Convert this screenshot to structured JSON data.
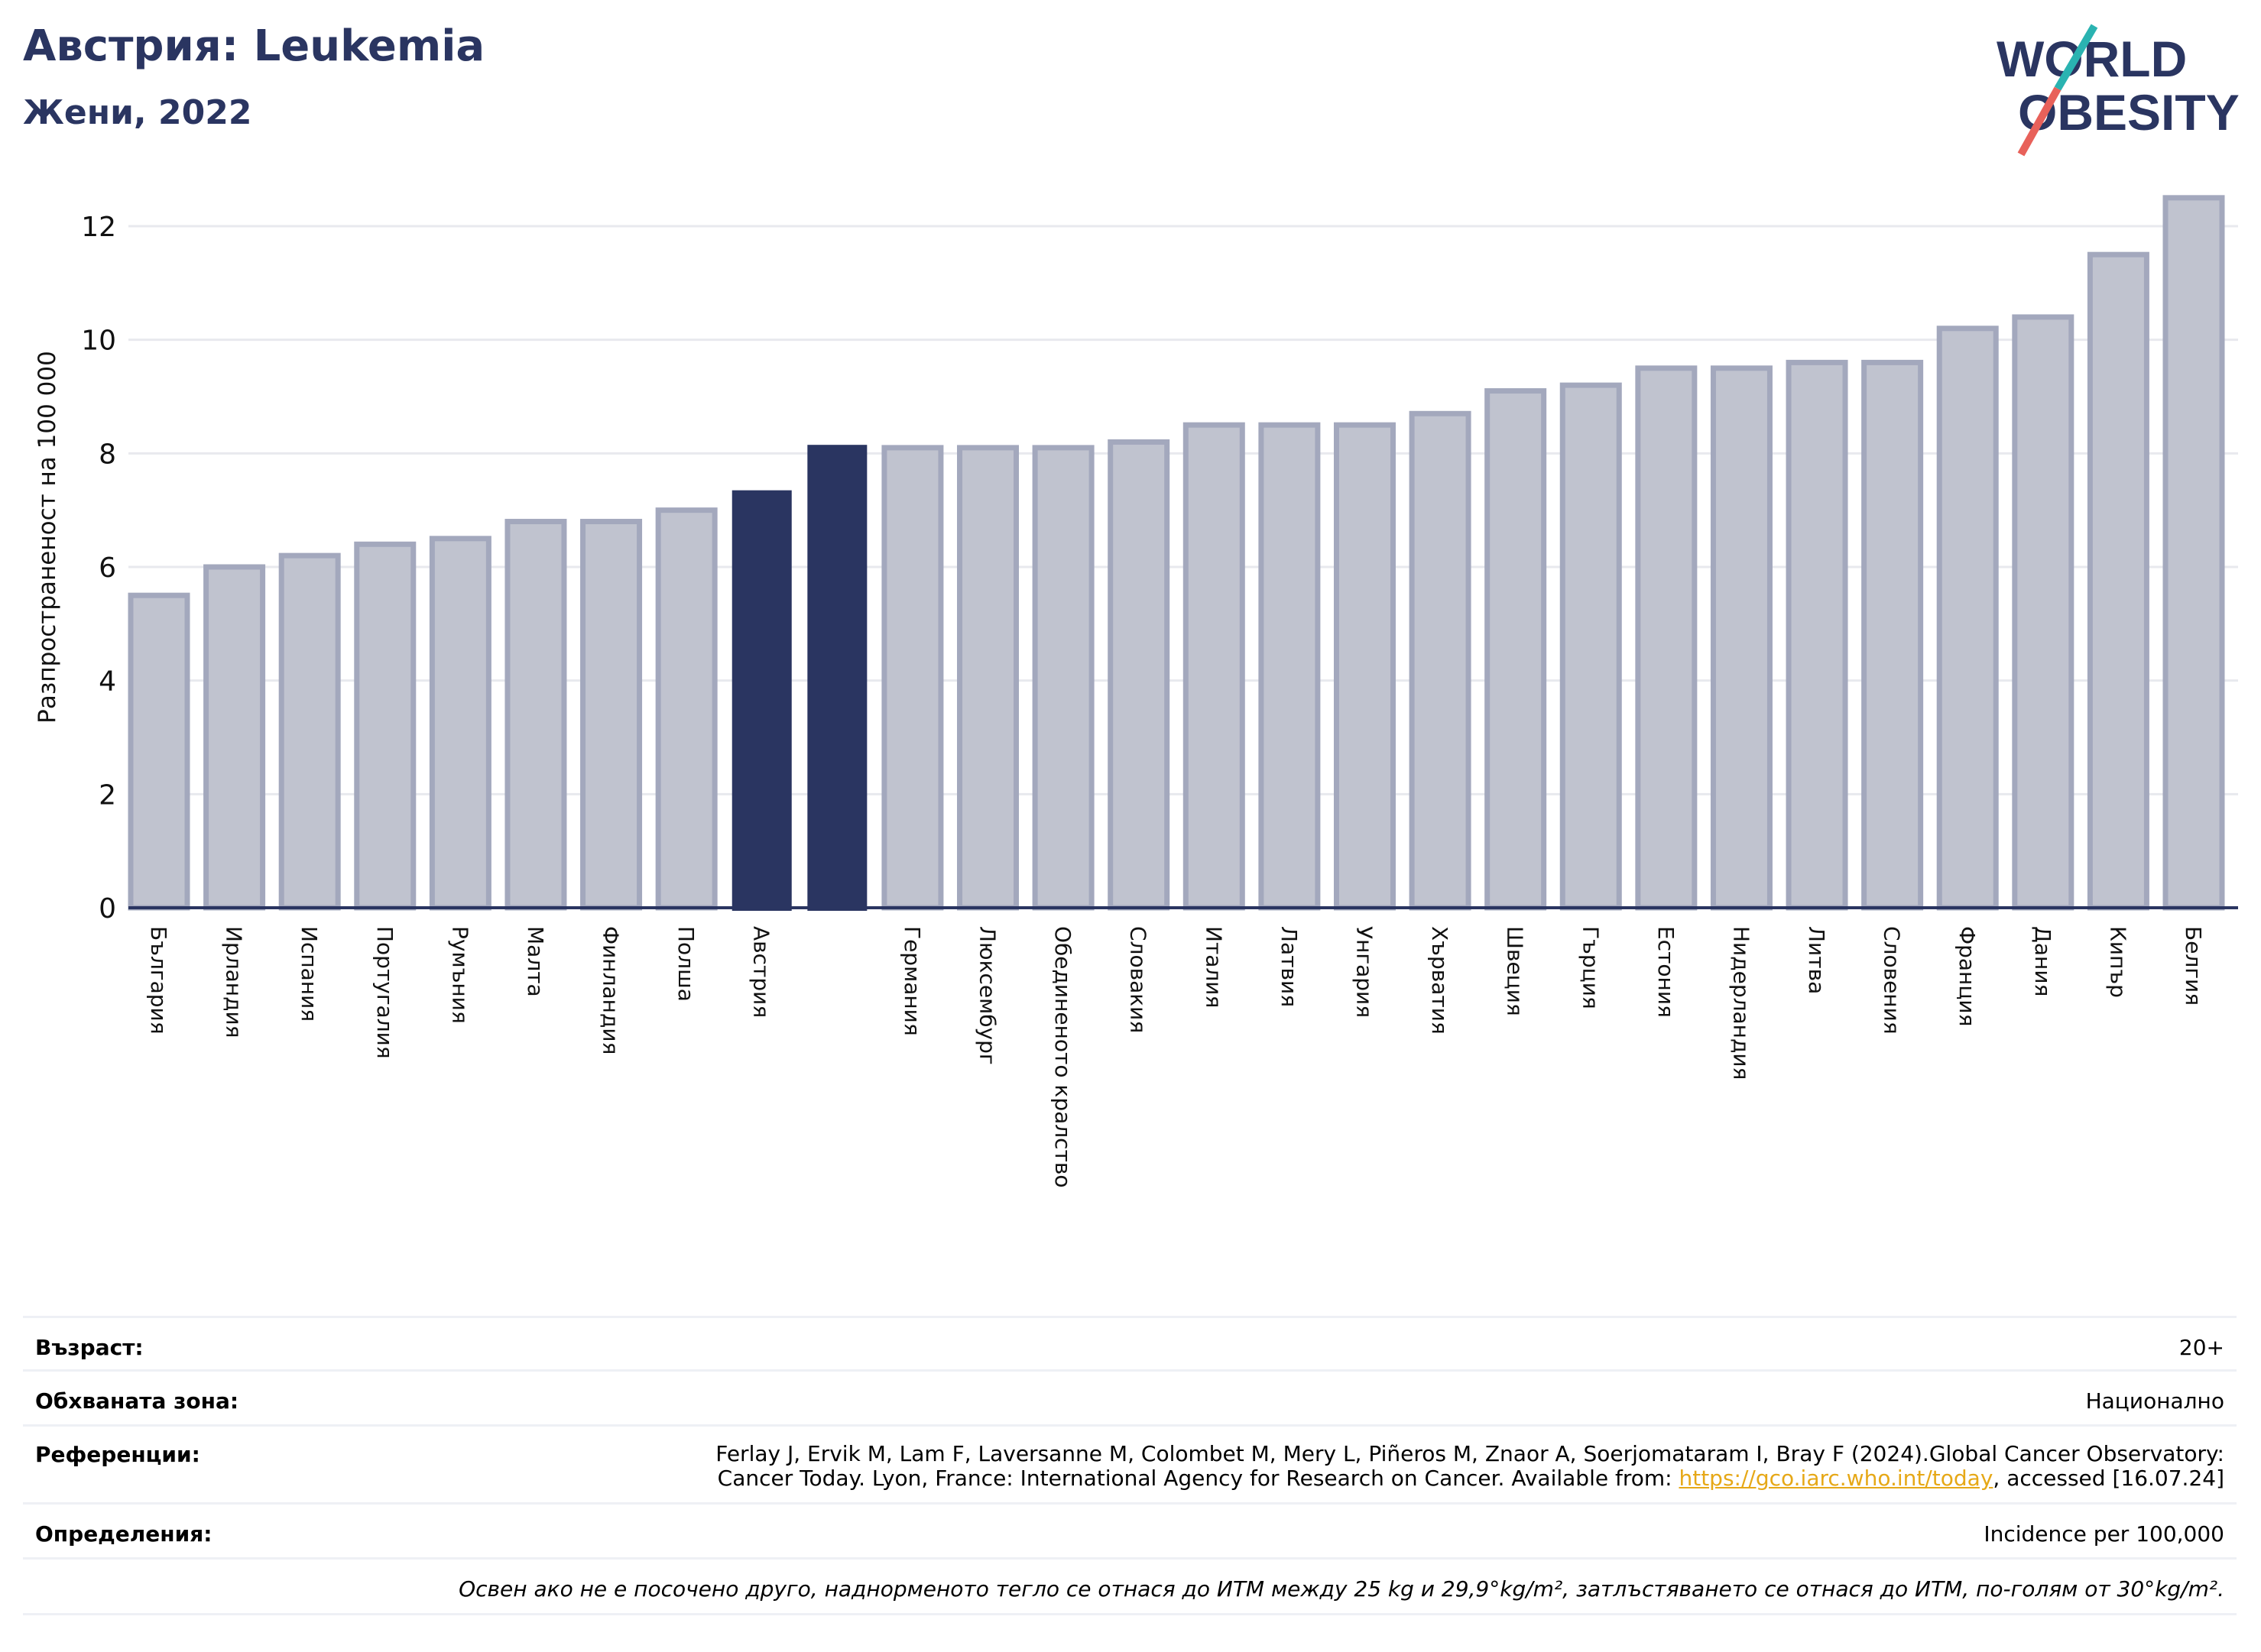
{
  "header": {
    "title": "Австрия: Leukemia",
    "subtitle": "Жени, 2022",
    "logo_line1": "WORLD",
    "logo_line2": "OBESITY"
  },
  "chart_data": {
    "type": "bar",
    "ylabel": "Разпространеност  на 100 000",
    "ylim": [
      0,
      13
    ],
    "yticks": [
      0,
      2,
      4,
      6,
      8,
      10,
      12
    ],
    "grid": true,
    "categories": [
      "България",
      "Ирландия",
      "Испания",
      "Португалия",
      "Румъния",
      "Малта",
      "Финландия",
      "Полша",
      "Австрия",
      "",
      "Германия",
      "Люксембург",
      "Обединеното кралство",
      "Словакия",
      "Италия",
      "Латвия",
      "Унгария",
      "Хърватия",
      "Швеция",
      "Гърция",
      "Естония",
      "Нидерландия",
      "Литва",
      "Словения",
      "Франция",
      "Дания",
      "Кипър",
      "Белгия"
    ],
    "values": [
      5.5,
      6.0,
      6.2,
      6.4,
      6.5,
      6.8,
      6.8,
      7.0,
      7.35,
      8.15,
      8.1,
      8.1,
      8.1,
      8.2,
      8.5,
      8.5,
      8.5,
      8.7,
      9.1,
      9.2,
      9.5,
      9.5,
      9.6,
      9.6,
      10.2,
      10.4,
      11.5,
      12.5
    ],
    "highlighted": [
      8,
      9
    ],
    "colors": {
      "bar": "#c0c3cf",
      "bar_border": "#a3a8bd",
      "highlight": "#2a3561",
      "grid": "#e8e9ee",
      "axis": "#2a3561"
    }
  },
  "meta": {
    "age_label": "Възраст:",
    "age_value": "20+",
    "area_label": "Обхваната зона:",
    "area_value": "Национално",
    "refs_label": "Референции:",
    "refs_line1": "Ferlay J, Ervik M, Lam F, Laversanne M, Colombet M, Mery L, Piñeros M, Znaor A, Soerjomataram I, Bray F (2024).Global Cancer Observatory:",
    "refs_line2_pre": "Cancer Today. Lyon, France: International Agency for Research on Cancer. Available from: ",
    "refs_link": "https://gco.iarc.who.int/today",
    "refs_line2_post": ", accessed [16.07.24]",
    "defs_label": "Определения:",
    "defs_value": "Incidence per 100,000",
    "note": "Освен ако не е посочено друго, наднорменото тегло се отнася до ИТМ между 25 kg и 29,9°kg/m², затлъстяването се отнася до ИТМ, по-голям от 30°kg/m²."
  }
}
